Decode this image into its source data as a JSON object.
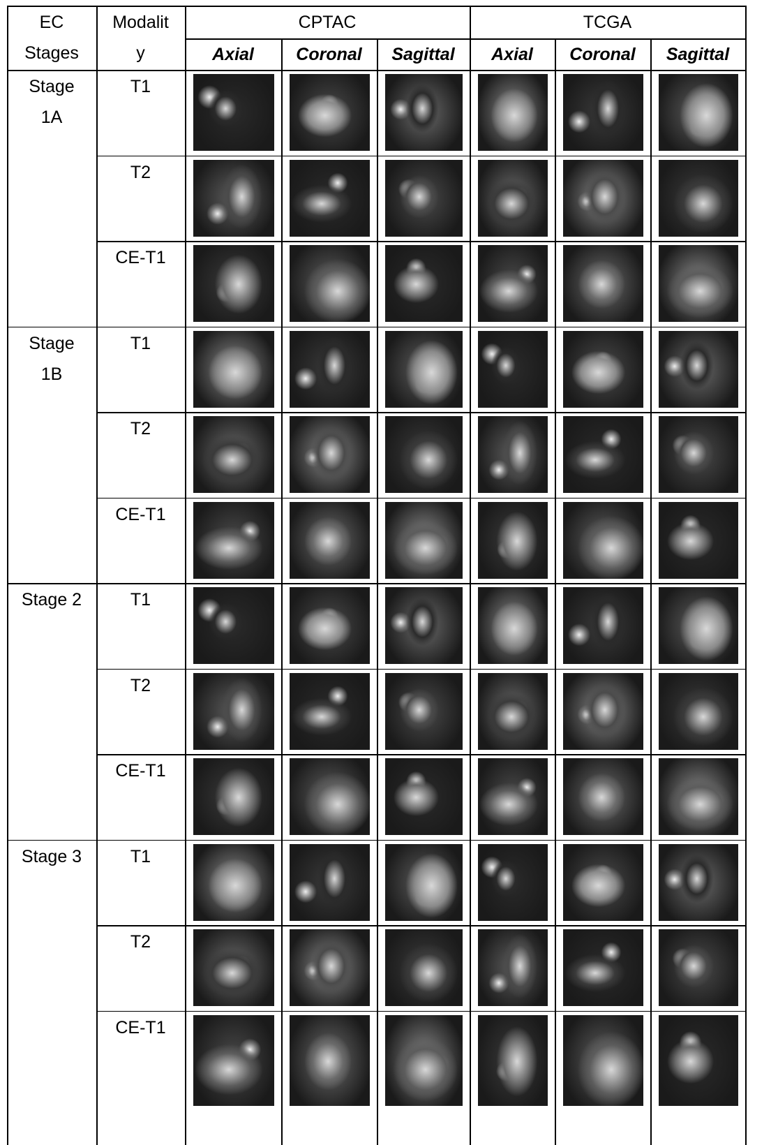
{
  "header": {
    "ec_stages": "EC Stages",
    "modality": "Modality",
    "groups": [
      "CPTAC",
      "TCGA"
    ],
    "views": [
      "Axial",
      "Coronal",
      "Sagittal",
      "Axial",
      "Coronal",
      "Sagittal"
    ]
  },
  "stages": [
    {
      "stage": "Stage 1A",
      "modalities": [
        "T1",
        "T2",
        "CE-T1"
      ]
    },
    {
      "stage": "Stage 1B",
      "modalities": [
        "T1",
        "T2",
        "CE-T1"
      ]
    },
    {
      "stage": "Stage 2",
      "modalities": [
        "T1",
        "T2",
        "CE-T1"
      ]
    },
    {
      "stage": "Stage 3",
      "modalities": [
        "T1",
        "T2",
        "CE-T1"
      ]
    }
  ]
}
